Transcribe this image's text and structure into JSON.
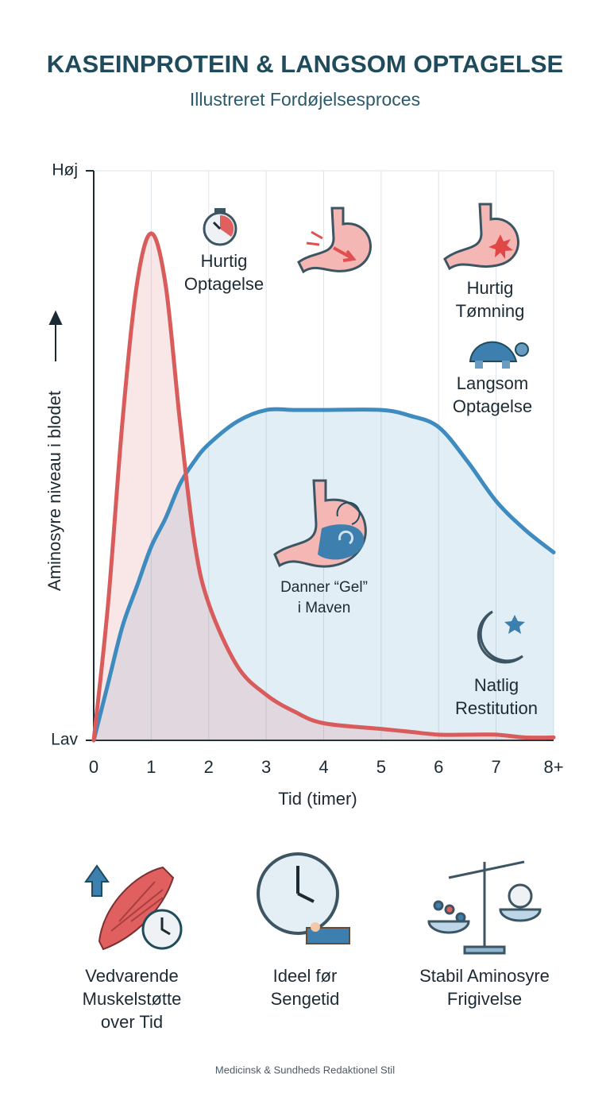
{
  "chart_data": {
    "type": "line",
    "title": "KASEINPROTEIN & LANGSOM OPTAGELSE",
    "subtitle": "Illustreret Fordøjelsesproces",
    "x_label": "Tid (timer)",
    "y_label": "Aminosyre niveau i blodet",
    "x": [
      0,
      0.25,
      0.5,
      0.75,
      1,
      1.25,
      1.5,
      1.75,
      2,
      2.5,
      3,
      3.5,
      4,
      5,
      5.5,
      6,
      6.5,
      7,
      7.5,
      8
    ],
    "series": [
      {
        "color": "#d95c5c",
        "values": [
          0,
          24,
          56,
          80,
          89,
          80,
          56,
          35,
          24,
          13,
          8,
          5,
          3,
          2,
          1.5,
          1,
          1,
          1,
          0.5,
          0.5
        ]
      },
      {
        "color": "#3d8bbf",
        "values": [
          0,
          10,
          20,
          27,
          34,
          39,
          45,
          49,
          52,
          56,
          58,
          58,
          58,
          58,
          57,
          55,
          49,
          42,
          37,
          33
        ]
      }
    ],
    "xlim": [
      0,
      8
    ],
    "xticks": [
      0,
      1,
      2,
      3,
      4,
      5,
      6,
      7,
      {
        "value": 8,
        "label": "8+"
      }
    ],
    "ylim": [
      0,
      100
    ],
    "yticks": [
      {
        "value": 0,
        "label": "Lav"
      },
      {
        "value": 100,
        "label": "Høj"
      }
    ],
    "grid": true,
    "annotations": [
      [
        "Hurtig",
        "Optagelse"
      ],
      [
        "Hurtig",
        "Tømning"
      ],
      [
        "Langsom",
        "Optagelse"
      ],
      [
        "Danner “Gel”",
        "i Maven"
      ],
      [
        "Natlig",
        "Restitution"
      ]
    ],
    "features": [
      [
        "Vedvarende",
        "Muskelstøtte",
        "over Tid"
      ],
      [
        "Ideel før",
        "Sengetid"
      ],
      [
        "Stabil Aminosyre",
        "Frigivelse"
      ]
    ],
    "footer": "Medicinsk & Sundheds Redaktionel Stil"
  }
}
